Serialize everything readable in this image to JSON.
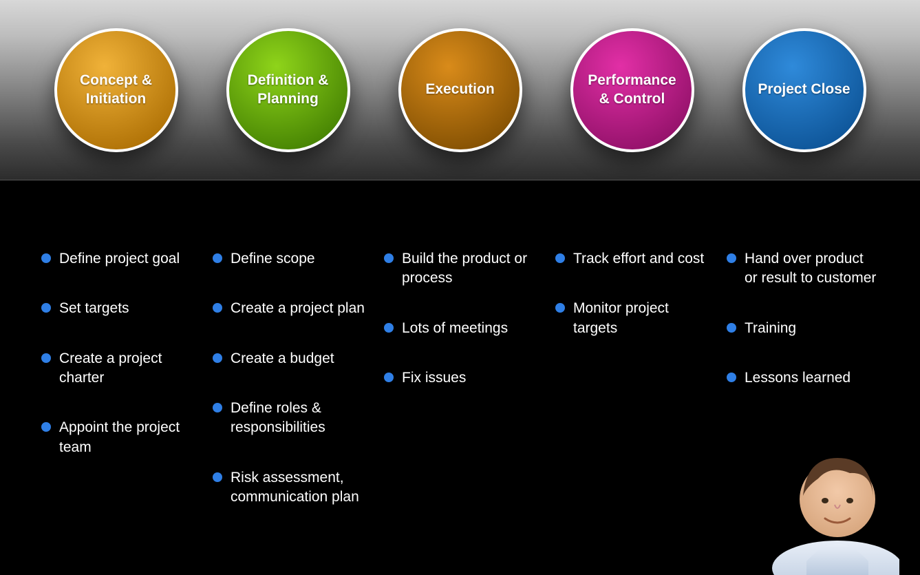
{
  "bullet_color": "#2f7fe6",
  "phases": [
    {
      "label": "Concept & Initiation",
      "color_top": "#f0b239",
      "color_bottom": "#a86a00",
      "items": [
        "Define project goal",
        "Set targets",
        "Create a project charter",
        "Appoint the project team"
      ]
    },
    {
      "label": "Definition & Planning",
      "color_top": "#8fd41a",
      "color_bottom": "#3e7a00",
      "items": [
        "Define scope",
        "Create a project plan",
        "Create a budget",
        "Define roles & responsibilities",
        "Risk assessment, communication plan"
      ]
    },
    {
      "label": "Execution",
      "color_top": "#d98b1a",
      "color_bottom": "#7a4a00",
      "items": [
        "Build the product or process",
        "Lots of meetings",
        "Fix issues"
      ]
    },
    {
      "label": "Performance & Control",
      "color_top": "#e22fa6",
      "color_bottom": "#8a0e63",
      "items": [
        "Track effort and cost",
        "Monitor project targets"
      ]
    },
    {
      "label": "Project Close",
      "color_top": "#2f8ada",
      "color_bottom": "#0a4f91",
      "items": [
        "Hand over product or result to customer",
        "Training",
        "Lessons learned"
      ]
    }
  ]
}
